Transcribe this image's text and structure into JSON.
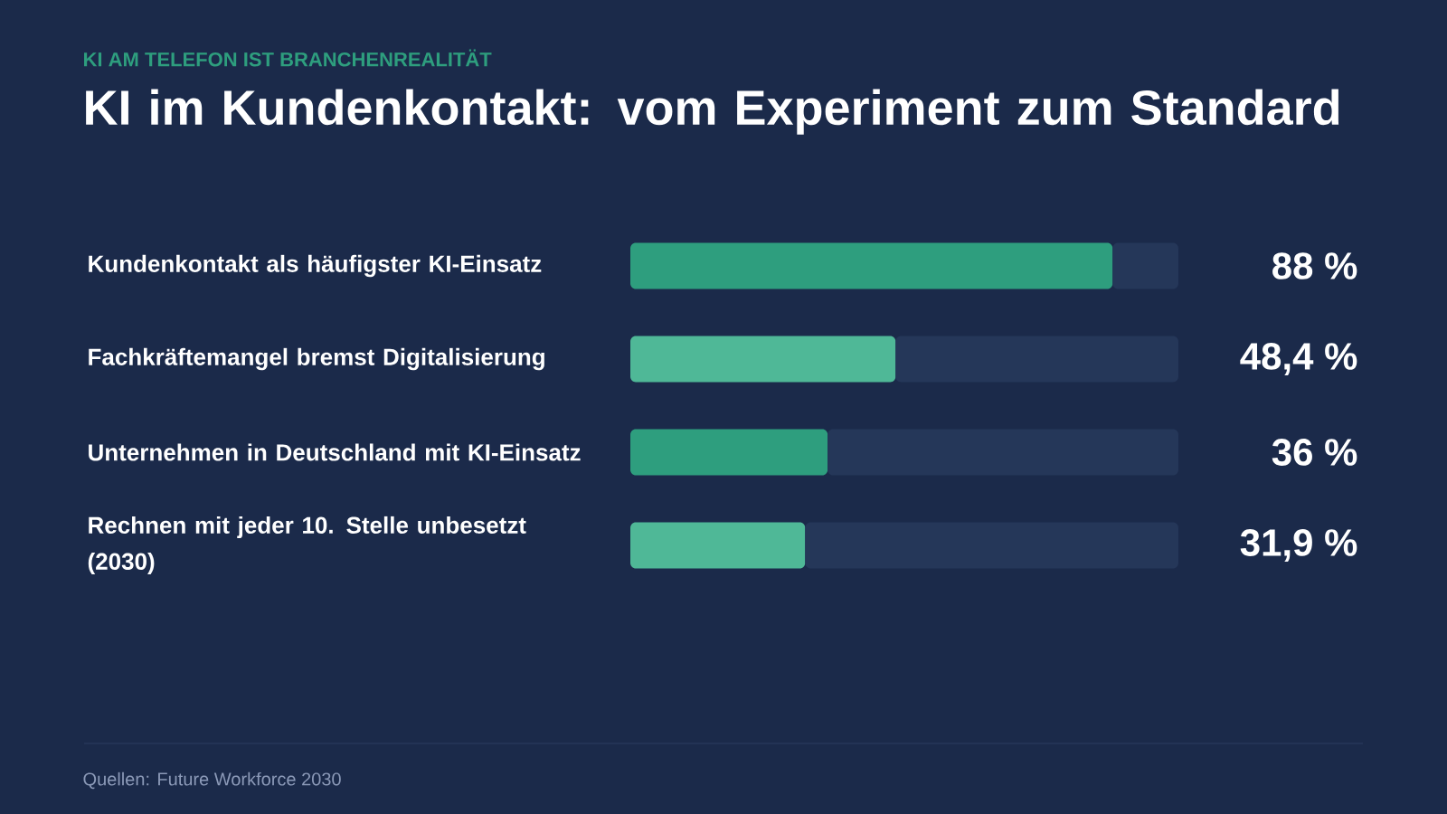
{
  "chart_data": {
    "type": "bar",
    "orientation": "horizontal",
    "stacked": true,
    "subtitle": "KI AM TELEFON IST BRANCHENREALITÄT",
    "title": "KI im Kundenkontakt: vom Experiment zum Standard",
    "categories": [
      "Kundenkontakt als häufigster KI-Einsatz",
      "Fachkräftemangel bremst Digitalisierung",
      "Unternehmen in Deutschland mit KI-Einsatz",
      "Rechnen mit jeder 10. Stelle unbesetzt (2030)"
    ],
    "series": [
      {
        "colors": [
          "#2e9e7e",
          "#4fb897",
          "#2e9e7e",
          "#4fb897"
        ],
        "values": [
          88,
          48.4,
          36,
          31.9
        ],
        "value_labels": [
          "88 %",
          "48,4 %",
          "36 %",
          "31,9 %"
        ]
      },
      {
        "color": "#253759",
        "values": [
          12,
          51.6,
          64,
          68.1
        ]
      }
    ],
    "tick_labels": "y",
    "annotations": [
      "Quellen: Future Workforce 2030"
    ]
  }
}
